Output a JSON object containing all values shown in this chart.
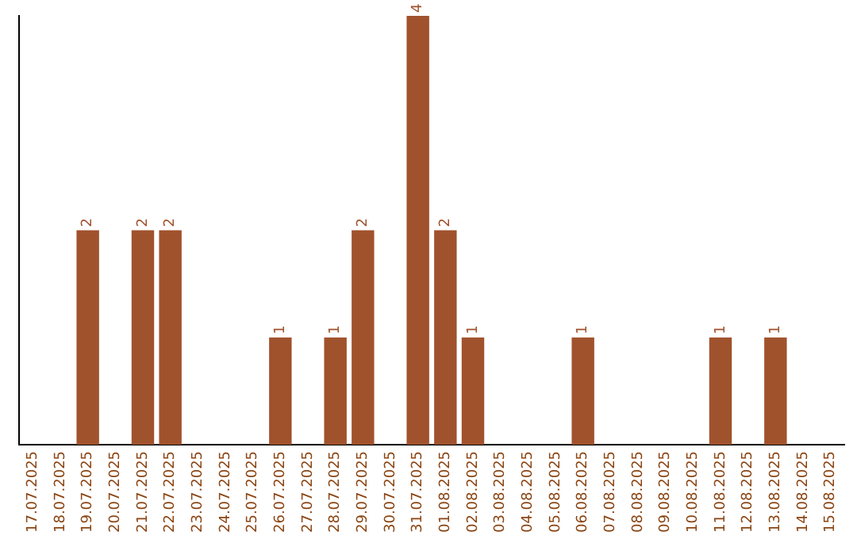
{
  "chart_data": {
    "type": "bar",
    "categories": [
      "17.07.2025",
      "18.07.2025",
      "19.07.2025",
      "20.07.2025",
      "21.07.2025",
      "22.07.2025",
      "23.07.2025",
      "24.07.2025",
      "25.07.2025",
      "26.07.2025",
      "27.07.2025",
      "28.07.2025",
      "29.07.2025",
      "30.07.2025",
      "31.07.2025",
      "01.08.2025",
      "02.08.2025",
      "03.08.2025",
      "04.08.2025",
      "05.08.2025",
      "06.08.2025",
      "07.08.2025",
      "08.08.2025",
      "09.08.2025",
      "10.08.2025",
      "11.08.2025",
      "12.08.2025",
      "13.08.2025",
      "14.08.2025",
      "15.08.2025"
    ],
    "values": [
      0,
      0,
      2,
      0,
      2,
      2,
      0,
      0,
      0,
      1,
      0,
      1,
      2,
      0,
      4,
      2,
      1,
      0,
      0,
      0,
      1,
      0,
      0,
      0,
      0,
      1,
      0,
      1,
      0,
      0
    ],
    "value_labels": [
      null,
      null,
      "2",
      null,
      "2",
      "2",
      null,
      null,
      null,
      "1",
      null,
      "1",
      "2",
      null,
      "4",
      "2",
      "1",
      null,
      null,
      null,
      "1",
      null,
      null,
      null,
      null,
      "1",
      null,
      "1",
      null,
      null
    ],
    "color": "#a0522d",
    "grid": false,
    "legend": false
  }
}
